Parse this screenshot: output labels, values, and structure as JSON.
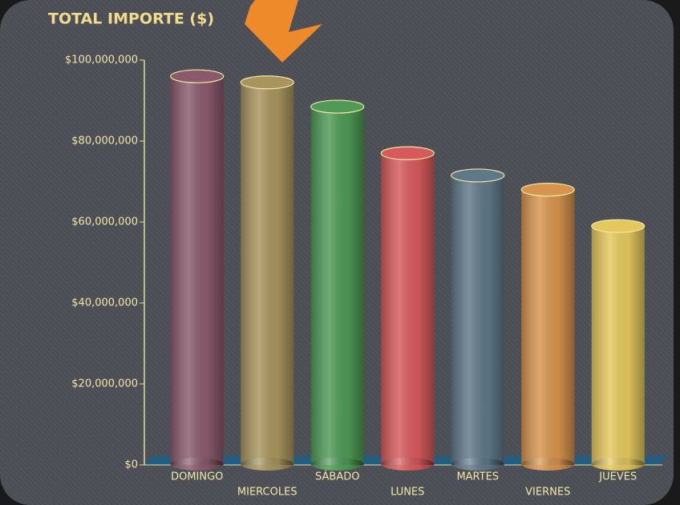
{
  "chart_data": {
    "type": "bar",
    "title": "TOTAL IMPORTE ($)",
    "categories": [
      "DOMINGO",
      "MIERCOLES",
      "SÁBADO",
      "LUNES",
      "MARTES",
      "VIERNES",
      "JUEVES"
    ],
    "values": [
      96000000,
      94500000,
      88500000,
      77000000,
      71500000,
      68000000,
      59000000
    ],
    "colors": [
      "#8a5a6c",
      "#a8955e",
      "#4e9a56",
      "#d65a5c",
      "#5f7888",
      "#d6944e",
      "#e4c85e"
    ],
    "ylim": [
      0,
      100000000
    ],
    "yticks": [
      {
        "value": 0,
        "label": "$0"
      },
      {
        "value": 20000000,
        "label": "$20,000,000"
      },
      {
        "value": 40000000,
        "label": "$40,000,000"
      },
      {
        "value": 60000000,
        "label": "$60,000,000"
      },
      {
        "value": 80000000,
        "label": "$80,000,000"
      },
      {
        "value": 100000000,
        "label": "$100,000,000"
      }
    ]
  }
}
